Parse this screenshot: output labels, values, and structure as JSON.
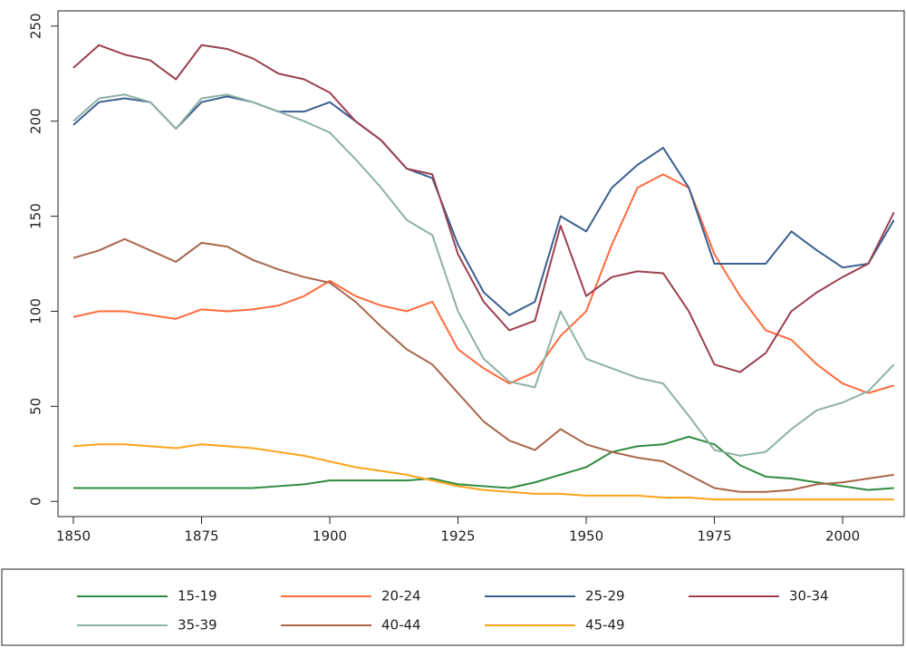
{
  "chart_data": {
    "type": "line",
    "x": [
      1850,
      1855,
      1860,
      1865,
      1870,
      1875,
      1880,
      1885,
      1890,
      1895,
      1900,
      1905,
      1910,
      1915,
      1920,
      1925,
      1930,
      1935,
      1940,
      1945,
      1950,
      1955,
      1960,
      1965,
      1970,
      1975,
      1980,
      1985,
      1990,
      1995,
      2000,
      2005,
      2010
    ],
    "series": [
      {
        "name": "15-19",
        "color": "#2e8b3e",
        "values": [
          7,
          7,
          7,
          7,
          7,
          7,
          7,
          7,
          8,
          9,
          11,
          11,
          11,
          11,
          12,
          9,
          8,
          7,
          10,
          14,
          18,
          26,
          29,
          30,
          34,
          30,
          19,
          13,
          12,
          10,
          8,
          6,
          7
        ]
      },
      {
        "name": "20-24",
        "color": "#ff6a3d",
        "values": [
          97,
          100,
          100,
          98,
          96,
          101,
          100,
          101,
          103,
          108,
          116,
          108,
          103,
          100,
          105,
          80,
          70,
          62,
          68,
          87,
          100,
          135,
          165,
          172,
          165,
          130,
          108,
          90,
          85,
          72,
          62,
          57,
          61
        ]
      },
      {
        "name": "25-29",
        "color": "#3a5f8f",
        "values": [
          198,
          210,
          212,
          210,
          196,
          210,
          213,
          210,
          205,
          205,
          210,
          200,
          190,
          175,
          170,
          135,
          110,
          98,
          105,
          150,
          142,
          165,
          177,
          186,
          165,
          125,
          125,
          125,
          142,
          132,
          123,
          125,
          148
        ]
      },
      {
        "name": "30-34",
        "color": "#9b4050",
        "values": [
          228,
          240,
          235,
          232,
          222,
          240,
          238,
          233,
          225,
          222,
          215,
          200,
          190,
          175,
          172,
          130,
          105,
          90,
          95,
          145,
          108,
          118,
          121,
          120,
          100,
          72,
          68,
          78,
          100,
          110,
          118,
          125,
          152
        ]
      },
      {
        "name": "35-39",
        "color": "#8fb0a4",
        "values": [
          200,
          212,
          214,
          210,
          196,
          212,
          214,
          210,
          205,
          200,
          194,
          180,
          165,
          148,
          140,
          100,
          75,
          63,
          60,
          100,
          75,
          70,
          65,
          62,
          45,
          27,
          24,
          26,
          38,
          48,
          52,
          58,
          72
        ]
      },
      {
        "name": "40-44",
        "color": "#a8664a",
        "values": [
          128,
          132,
          138,
          132,
          126,
          136,
          134,
          127,
          122,
          118,
          115,
          105,
          92,
          80,
          72,
          57,
          42,
          32,
          27,
          38,
          30,
          26,
          23,
          21,
          14,
          7,
          5,
          5,
          6,
          9,
          10,
          12,
          14
        ]
      },
      {
        "name": "45-49",
        "color": "#ffa31a",
        "values": [
          29,
          30,
          30,
          29,
          28,
          30,
          29,
          28,
          26,
          24,
          21,
          18,
          16,
          14,
          11,
          8,
          6,
          5,
          4,
          4,
          3,
          3,
          3,
          2,
          2,
          1,
          1,
          1,
          1,
          1,
          1,
          1,
          1
        ]
      }
    ],
    "xlim": [
      1847,
      2012
    ],
    "xticks": [
      1850,
      1875,
      1900,
      1925,
      1950,
      1975,
      2000
    ],
    "ylim": [
      -8,
      258
    ],
    "yticks": [
      0,
      50,
      100,
      150,
      200,
      250
    ],
    "legend": "bottom"
  }
}
